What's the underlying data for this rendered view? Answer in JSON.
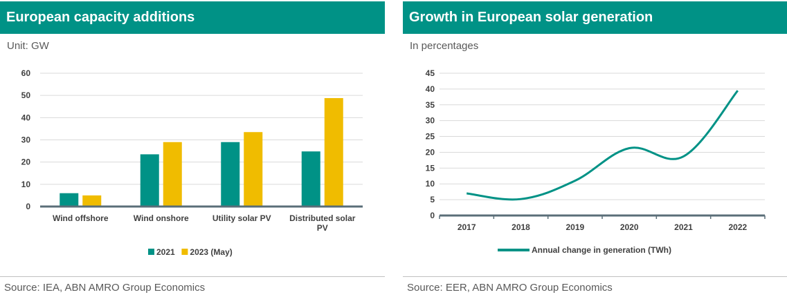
{
  "colors": {
    "teal": "#009286",
    "gold": "#f0bc00",
    "axis": "#5a6e78",
    "grid": "#d9d9d9"
  },
  "left": {
    "title": "European capacity additions",
    "unit": "Unit: GW",
    "source": "Source: IEA, ABN AMRO Group Economics"
  },
  "right": {
    "title": "Growth in European solar generation",
    "unit": "In percentages",
    "source": "Source: EER, ABN AMRO Group Economics"
  },
  "chart_data": [
    {
      "type": "bar",
      "title": "European capacity additions",
      "ylabel": "Unit: GW",
      "categories": [
        [
          "Wind offshore"
        ],
        [
          "Wind onshore"
        ],
        [
          "Utility solar PV"
        ],
        [
          "Distributed solar",
          "PV"
        ]
      ],
      "series": [
        {
          "name": "2021",
          "color": "#009286",
          "values": [
            6,
            23.5,
            29,
            24.8
          ]
        },
        {
          "name": "2023 (May)",
          "color": "#f0bc00",
          "values": [
            5,
            29,
            33.5,
            48.8
          ]
        }
      ],
      "ylim": [
        0,
        60
      ],
      "yticks": [
        0,
        10,
        20,
        30,
        40,
        50,
        60
      ],
      "grid": true,
      "legend": "bottom"
    },
    {
      "type": "line",
      "title": "Growth in European solar generation",
      "ylabel": "In percentages",
      "x": [
        "2017",
        "2018",
        "2019",
        "2020",
        "2021",
        "2022"
      ],
      "series": [
        {
          "name": "Annual change in generation (TWh)",
          "color": "#009286",
          "values": [
            7,
            5.2,
            11,
            21.3,
            18.7,
            39.5
          ]
        }
      ],
      "ylim": [
        0,
        45
      ],
      "yticks": [
        0,
        5,
        10,
        15,
        20,
        25,
        30,
        35,
        40,
        45
      ],
      "grid": true,
      "legend": "bottom"
    }
  ]
}
